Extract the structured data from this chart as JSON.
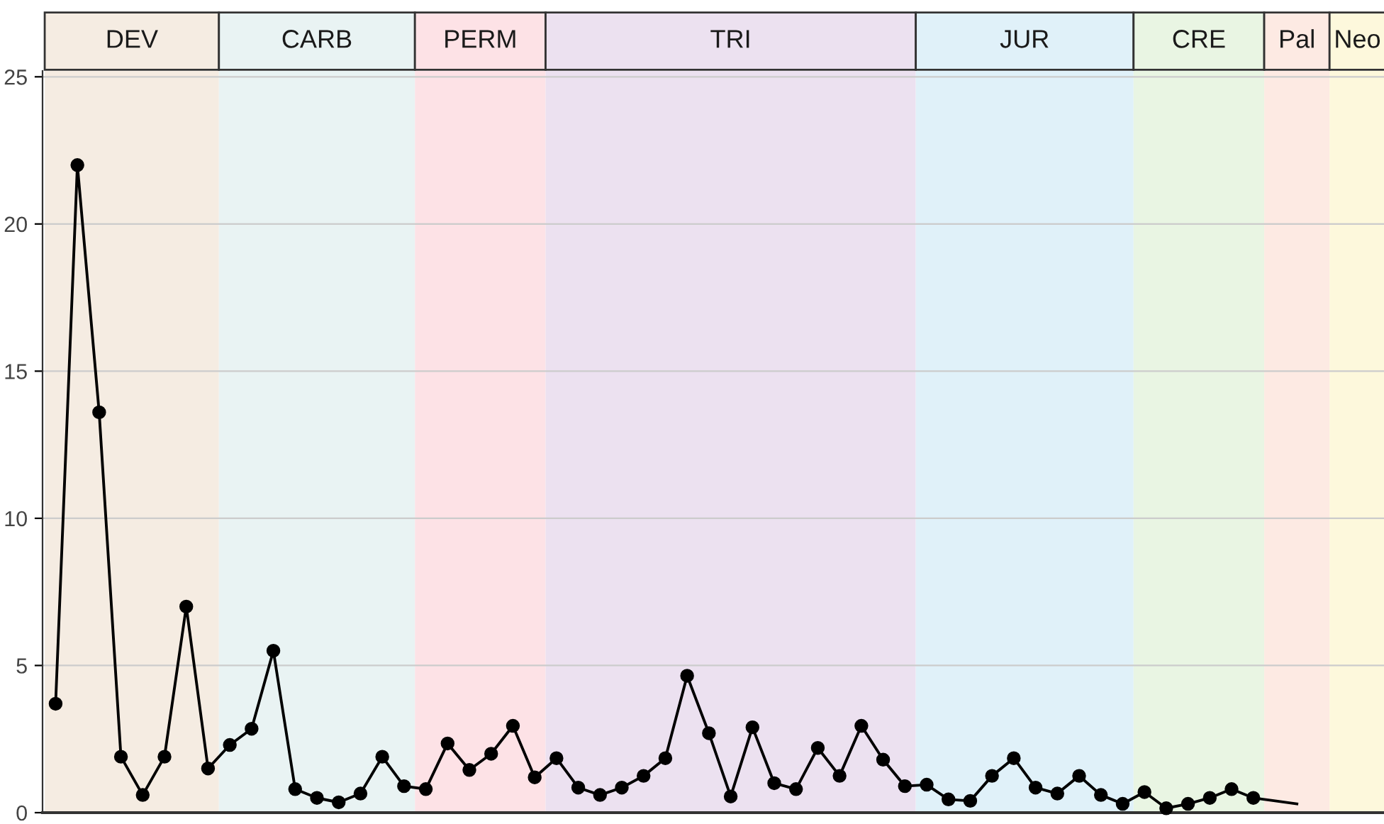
{
  "chart_data": {
    "type": "line",
    "marker": "circle",
    "line_style": "solid",
    "grid": "y",
    "tick_labels": "y",
    "categories": [
      null,
      null,
      null,
      null,
      null,
      null,
      null,
      null,
      null,
      null,
      null,
      null,
      null,
      null,
      null,
      null,
      null,
      null,
      null,
      null,
      null,
      null,
      null,
      null,
      null,
      null,
      null,
      null,
      null,
      null,
      null,
      null,
      null,
      null,
      null,
      null,
      null,
      null,
      null,
      null,
      null,
      null,
      null,
      null,
      null,
      null,
      null,
      null,
      null,
      null,
      null,
      null,
      null,
      null,
      null,
      null,
      null,
      null
    ],
    "ylim": [
      0,
      25.2
    ],
    "yticks": [
      0,
      5,
      10,
      15,
      20,
      25
    ],
    "series": [
      {
        "color": "#000000",
        "values": [
          3.7,
          22.0,
          13.6,
          1.9,
          0.6,
          1.9,
          7.0,
          1.5,
          2.3,
          2.85,
          5.5,
          0.8,
          0.5,
          0.35,
          0.65,
          1.9,
          0.9,
          0.8,
          2.35,
          1.45,
          2.0,
          2.95,
          1.2,
          1.85,
          0.85,
          0.6,
          0.85,
          1.25,
          1.85,
          4.65,
          2.7,
          0.55,
          2.9,
          1.0,
          0.8,
          2.2,
          1.25,
          2.95,
          1.8,
          0.9,
          0.95,
          0.45,
          0.4,
          1.25,
          1.85,
          0.85,
          0.65,
          1.25,
          0.6,
          0.3,
          0.7,
          0.15,
          0.3,
          0.5,
          0.8,
          0.5,
          null,
          null
        ]
      },
      {
        "color": "#000000",
        "marker": "none",
        "values": [
          null,
          null,
          null,
          null,
          null,
          null,
          null,
          null,
          null,
          null,
          null,
          null,
          null,
          null,
          null,
          null,
          null,
          null,
          null,
          null,
          null,
          null,
          null,
          null,
          null,
          null,
          null,
          null,
          null,
          null,
          null,
          null,
          null,
          null,
          null,
          null,
          null,
          null,
          null,
          null,
          null,
          null,
          null,
          null,
          null,
          null,
          null,
          null,
          null,
          null,
          null,
          null,
          null,
          null,
          null,
          0.5,
          0.4,
          0.3
        ]
      }
    ],
    "annotations": [
      "DEV",
      "CARB",
      "PERM",
      "TRI",
      "JUR",
      "CRE",
      "Pal",
      "Neo"
    ]
  }
}
